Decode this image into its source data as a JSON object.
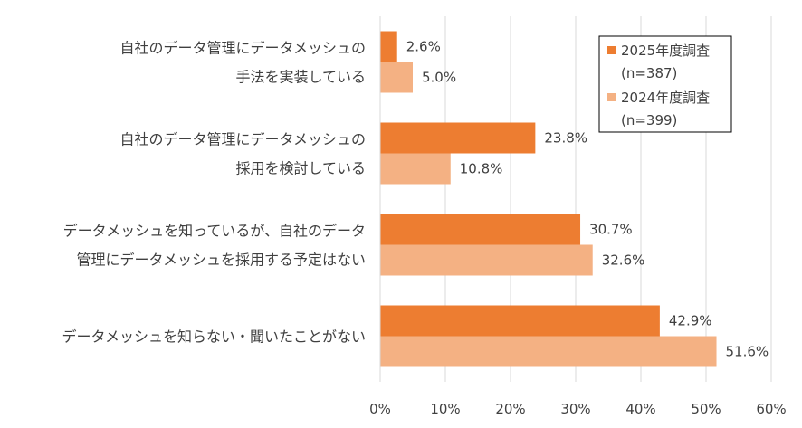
{
  "chart_data": {
    "type": "bar",
    "orientation": "horizontal",
    "categories": [
      [
        "自社のデータ管理にデータメッシュの",
        "手法を実装している"
      ],
      [
        "自社のデータ管理にデータメッシュの",
        "採用を検討している"
      ],
      [
        "データメッシュを知っているが、自社のデータ",
        "管理にデータメッシュを採用する予定はない"
      ],
      [
        "データメッシュを知らない・聞いたことがない"
      ]
    ],
    "series": [
      {
        "name": "2025年度調査",
        "note": "(n=387)",
        "values": [
          2.6,
          23.8,
          30.7,
          42.9
        ],
        "value_labels": [
          "2.6%",
          "23.8%",
          "30.7%",
          "42.9%"
        ],
        "color": "#ED7D31"
      },
      {
        "name": "2024年度調査",
        "note": "(n=399)",
        "values": [
          5.0,
          10.8,
          32.6,
          51.6
        ],
        "value_labels": [
          "5.0%",
          "10.8%",
          "32.6%",
          "51.6%"
        ],
        "color": "#F4B183"
      }
    ],
    "xlim": [
      0,
      60
    ],
    "ticks": [
      "0%",
      "10%",
      "20%",
      "30%",
      "40%",
      "50%",
      "60%"
    ],
    "grid": true,
    "legend": "top-right",
    "title": "",
    "xlabel": "",
    "ylabel": ""
  }
}
